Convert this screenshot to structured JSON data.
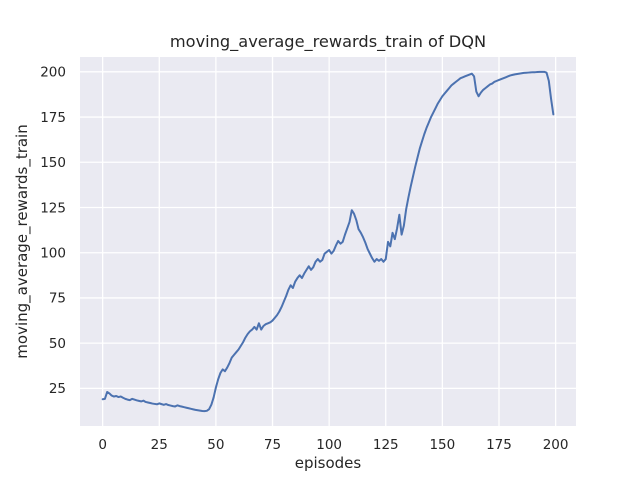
{
  "chart_data": {
    "type": "line",
    "title": "moving_average_rewards_train of DQN",
    "xlabel": "episodes",
    "ylabel": "moving_average_rewards_train",
    "x_ticks": [
      0,
      25,
      50,
      75,
      100,
      125,
      150,
      175,
      200
    ],
    "y_ticks": [
      25,
      50,
      75,
      100,
      125,
      150,
      175,
      200
    ],
    "xlim": [
      -10,
      209
    ],
    "ylim": [
      4.2,
      208.2
    ],
    "grid": true,
    "legend": "none",
    "style": {
      "figure_background": "#ffffff",
      "plot_background": "#eaeaf2",
      "grid_color": "#ffffff",
      "line_color": "#4c72b0",
      "text_color": "#262626"
    },
    "series": [
      {
        "name": "moving_average_rewards_train",
        "x_start": 0,
        "x_step": 1,
        "n_points": 200,
        "y": [
          19.0,
          19.2,
          23.0,
          22.2,
          21.0,
          20.5,
          20.8,
          20.2,
          20.5,
          19.8,
          19.2,
          18.8,
          18.5,
          19.2,
          18.8,
          18.4,
          18.1,
          17.8,
          18.2,
          17.5,
          17.2,
          16.9,
          16.6,
          16.4,
          16.2,
          16.7,
          16.3,
          15.9,
          16.3,
          15.8,
          15.5,
          15.2,
          15.0,
          15.6,
          15.2,
          14.9,
          14.6,
          14.3,
          14.0,
          13.7,
          13.4,
          13.1,
          12.9,
          12.7,
          12.5,
          12.4,
          12.6,
          13.5,
          16.0,
          20.0,
          25.5,
          30.0,
          33.5,
          35.5,
          34.5,
          36.5,
          39.0,
          42.0,
          43.5,
          45.0,
          46.5,
          48.5,
          50.5,
          53.0,
          55.0,
          56.5,
          57.5,
          59.0,
          57.5,
          61.0,
          57.5,
          59.5,
          60.5,
          61.0,
          61.5,
          62.5,
          64.0,
          65.5,
          67.5,
          70.0,
          73.0,
          76.0,
          79.5,
          82.0,
          80.5,
          84.0,
          86.0,
          87.5,
          86.0,
          88.5,
          90.5,
          92.5,
          90.5,
          92.0,
          95.0,
          96.5,
          95.0,
          96.0,
          99.5,
          100.5,
          101.5,
          99.5,
          101.0,
          104.0,
          106.5,
          105.0,
          106.0,
          110.0,
          113.5,
          117.0,
          123.5,
          121.5,
          118.0,
          113.0,
          111.0,
          108.5,
          105.5,
          102.0,
          99.5,
          97.0,
          95.0,
          96.5,
          95.5,
          96.5,
          95.0,
          96.5,
          106.0,
          103.5,
          111.0,
          107.5,
          113.5,
          121.0,
          110.0,
          115.0,
          124.0,
          130.5,
          136.5,
          142.0,
          147.5,
          152.5,
          157.5,
          161.5,
          165.5,
          169.0,
          172.0,
          175.0,
          177.5,
          180.0,
          182.5,
          184.5,
          186.5,
          188.0,
          189.5,
          191.0,
          192.5,
          193.5,
          194.5,
          195.5,
          196.5,
          197.0,
          197.5,
          198.0,
          198.5,
          199.0,
          197.5,
          189.0,
          186.5,
          188.5,
          190.0,
          191.0,
          192.0,
          193.0,
          193.5,
          194.5,
          195.0,
          195.5,
          196.0,
          196.5,
          197.0,
          197.5,
          198.0,
          198.3,
          198.6,
          198.8,
          199.0,
          199.2,
          199.4,
          199.5,
          199.6,
          199.7,
          199.8,
          199.8,
          199.9,
          200.0,
          200.0,
          200.0,
          199.5,
          195.0,
          185.0,
          176.5
        ]
      }
    ]
  }
}
